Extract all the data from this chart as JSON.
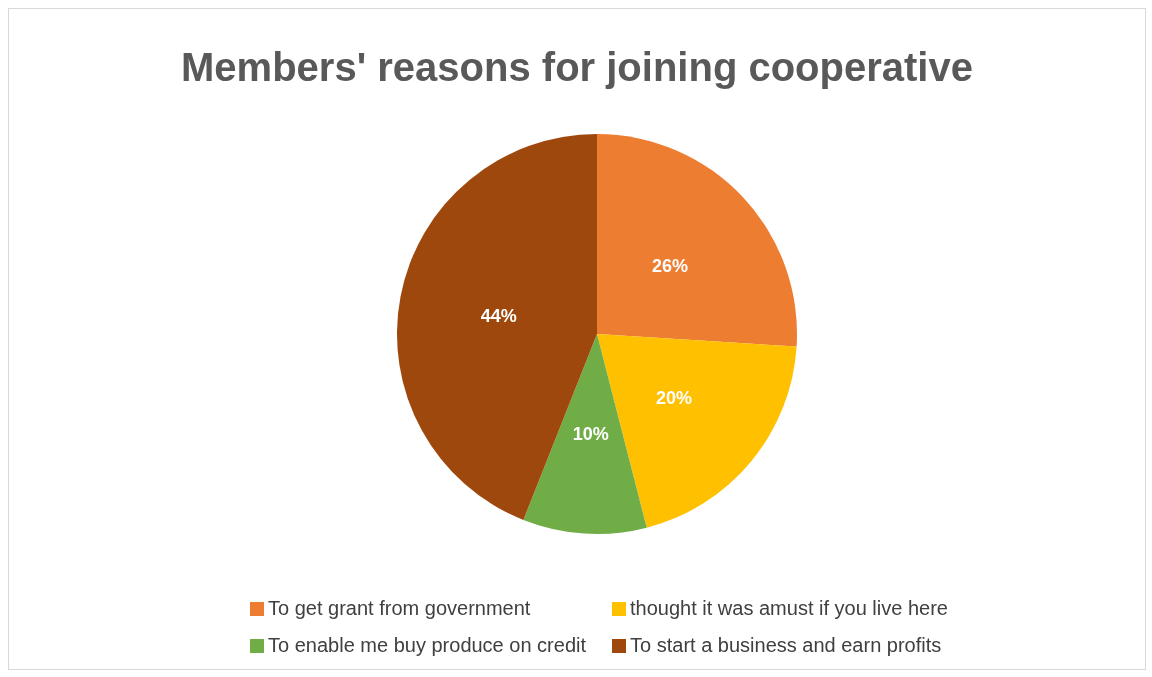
{
  "chart_data": {
    "type": "pie",
    "title": "Members' reasons for joining cooperative",
    "categories": [
      "To get grant from government",
      "thought it was amust if you live here",
      "To enable me buy produce on credit",
      "To start a business and earn profits"
    ],
    "values": [
      26,
      20,
      10,
      44
    ],
    "colors": [
      "#ed7d31",
      "#ffc000",
      "#70ad47",
      "#9e480e"
    ],
    "value_labels": [
      "26%",
      "20%",
      "10%",
      "44%"
    ],
    "legend": "bottom"
  }
}
